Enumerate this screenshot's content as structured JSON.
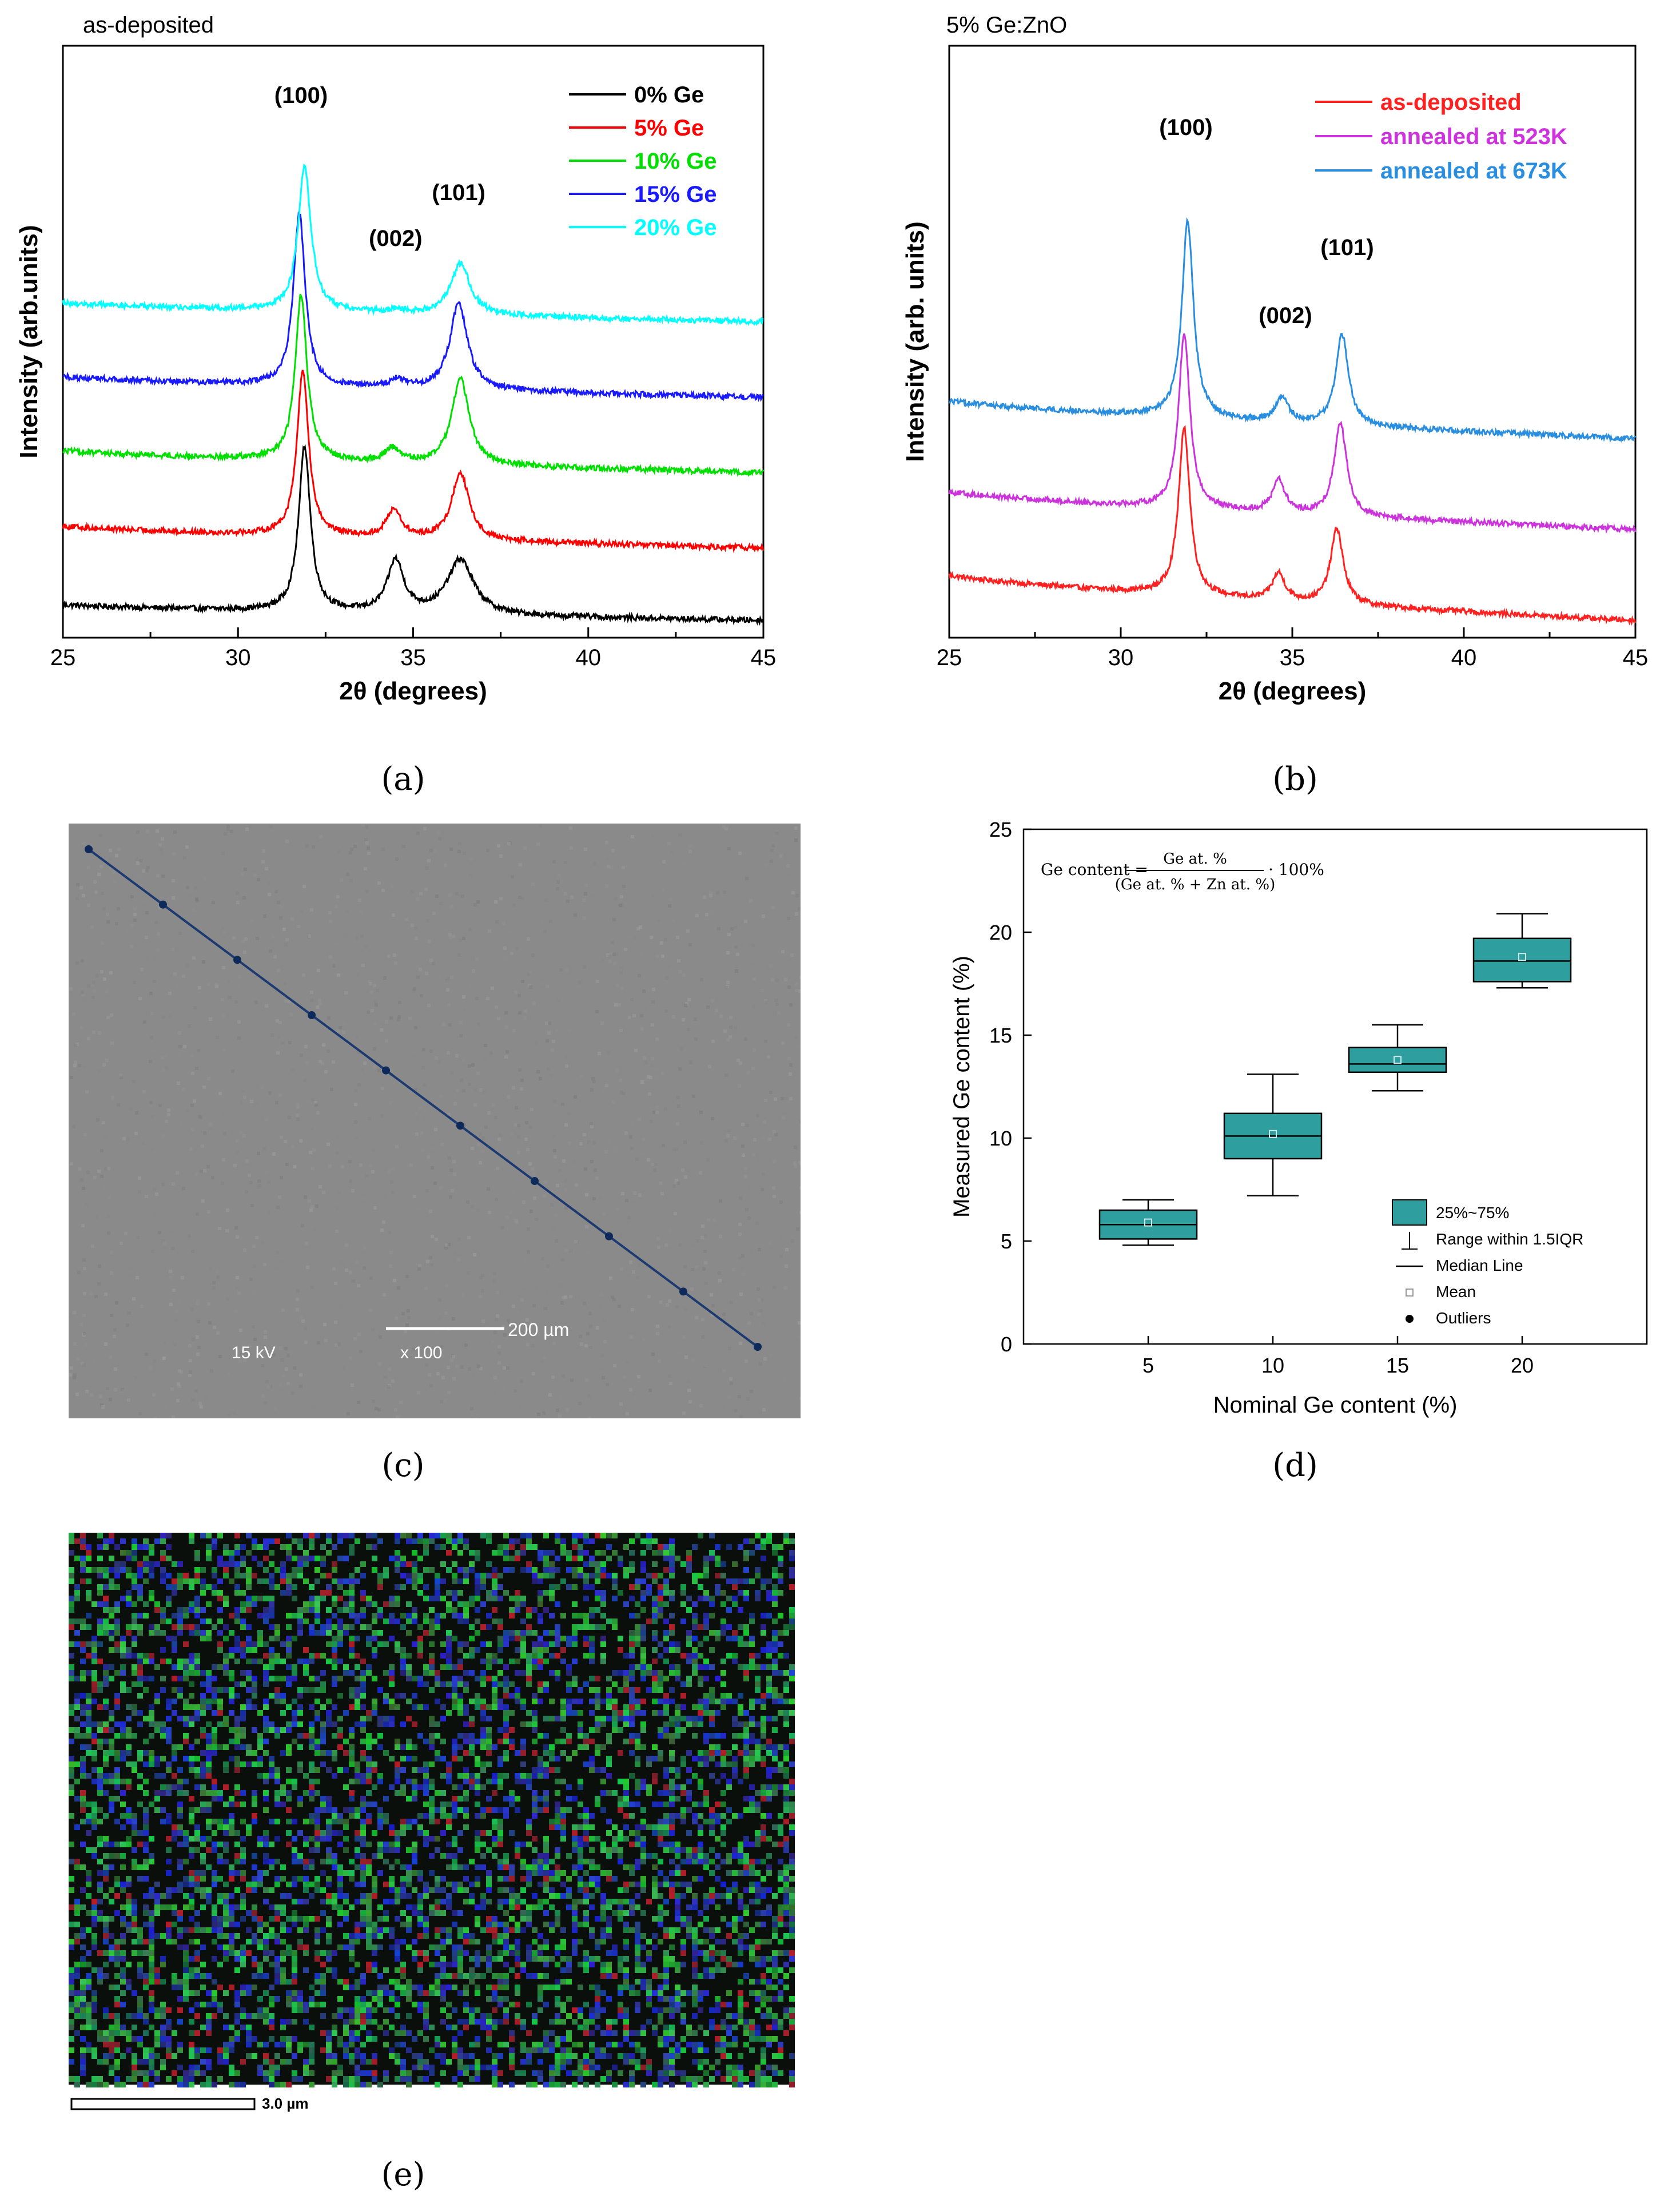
{
  "panels": {
    "a": {
      "label": "(a)",
      "top_title": "as-deposited",
      "chart_data": {
        "type": "line",
        "xlabel": "2θ (degrees)",
        "ylabel": "Intensity (arb.units)",
        "xlim": [
          25,
          45
        ],
        "xticks": [
          "25",
          "30",
          "35",
          "40",
          "45"
        ],
        "legend_position": "top-right",
        "peak_labels": [
          {
            "text": "(100)",
            "x": 31.8
          },
          {
            "text": "(002)",
            "x": 34.5
          },
          {
            "text": "(101)",
            "x": 36.3
          }
        ],
        "series": [
          {
            "name": "0% Ge",
            "color": "#000000",
            "baseline_start": 0.1,
            "baseline_end": 0.0,
            "peaks": [
              {
                "x": 31.9,
                "h": 1.05,
                "w": 0.2
              },
              {
                "x": 34.5,
                "h": 0.33,
                "w": 0.28
              },
              {
                "x": 36.35,
                "h": 0.35,
                "w": 0.45
              }
            ]
          },
          {
            "name": "5% Ge",
            "color": "#ff0000",
            "baseline_start": 0.6,
            "baseline_end": 0.46,
            "peaks": [
              {
                "x": 31.85,
                "h": 1.05,
                "w": 0.2
              },
              {
                "x": 34.45,
                "h": 0.18,
                "w": 0.25
              },
              {
                "x": 36.35,
                "h": 0.43,
                "w": 0.3
              }
            ]
          },
          {
            "name": "10% Ge",
            "color": "#00e000",
            "baseline_start": 1.08,
            "baseline_end": 0.94,
            "peaks": [
              {
                "x": 31.8,
                "h": 1.05,
                "w": 0.2
              },
              {
                "x": 34.4,
                "h": 0.09,
                "w": 0.25
              },
              {
                "x": 36.35,
                "h": 0.55,
                "w": 0.3
              }
            ]
          },
          {
            "name": "15% Ge",
            "color": "#1a1aff",
            "baseline_start": 1.55,
            "baseline_end": 1.42,
            "peaks": [
              {
                "x": 31.75,
                "h": 1.1,
                "w": 0.2
              },
              {
                "x": 34.55,
                "h": 0.05,
                "w": 0.25
              },
              {
                "x": 36.3,
                "h": 0.55,
                "w": 0.3
              }
            ]
          },
          {
            "name": "20% Ge",
            "color": "#00ffff",
            "baseline_start": 2.02,
            "baseline_end": 1.9,
            "peaks": [
              {
                "x": 31.9,
                "h": 0.92,
                "w": 0.22
              },
              {
                "x": 34.5,
                "h": 0.02,
                "w": 0.25
              },
              {
                "x": 36.35,
                "h": 0.33,
                "w": 0.33
              }
            ]
          }
        ]
      }
    },
    "b": {
      "label": "(b)",
      "top_title": "5% Ge:ZnO",
      "chart_data": {
        "type": "line",
        "xlabel": "2θ (degrees)",
        "ylabel": "Intensity (arb. units)",
        "xlim": [
          25,
          45
        ],
        "xticks": [
          "25",
          "30",
          "35",
          "40",
          "45"
        ],
        "legend_position": "top-right",
        "peak_labels": [
          {
            "text": "(100)",
            "x": 31.9
          },
          {
            "text": "(002)",
            "x": 34.8
          },
          {
            "text": "(101)",
            "x": 36.6
          }
        ],
        "series": [
          {
            "name": "as-deposited",
            "color": "#ff2020",
            "baseline_start": 0.3,
            "baseline_end": 0.0,
            "peaks": [
              {
                "x": 31.85,
                "h": 1.1,
                "w": 0.2
              },
              {
                "x": 34.6,
                "h": 0.18,
                "w": 0.22
              },
              {
                "x": 36.3,
                "h": 0.5,
                "w": 0.22
              }
            ]
          },
          {
            "name": "annealed at 523K",
            "color": "#cc33dd",
            "baseline_start": 0.85,
            "baseline_end": 0.6,
            "peaks": [
              {
                "x": 31.85,
                "h": 1.15,
                "w": 0.2
              },
              {
                "x": 34.6,
                "h": 0.22,
                "w": 0.22
              },
              {
                "x": 36.4,
                "h": 0.62,
                "w": 0.22
              }
            ]
          },
          {
            "name": "annealed at 673K",
            "color": "#2a8ee0",
            "baseline_start": 1.45,
            "baseline_end": 1.2,
            "peaks": [
              {
                "x": 31.95,
                "h": 1.3,
                "w": 0.2
              },
              {
                "x": 34.7,
                "h": 0.16,
                "w": 0.22
              },
              {
                "x": 36.45,
                "h": 0.6,
                "w": 0.22
              }
            ]
          }
        ]
      }
    },
    "c": {
      "label": "(c)",
      "scalebar_text": "200 µm",
      "voltage_text": "15 kV",
      "magnification_text": "x 100",
      "line_color": "#1c3a70",
      "background_color": "#8a8a8a",
      "line_points": 10
    },
    "d": {
      "label": "(d)",
      "formula": {
        "lhs": "Ge content =",
        "numerator": "Ge at. %",
        "denominator": "(Ge at. % + Zn at. %)",
        "suffix": "· 100%"
      },
      "chart_data": {
        "type": "box",
        "xlabel": "Nominal Ge content (%)",
        "ylabel": "Measured Ge content (%)",
        "ylim": [
          0,
          25
        ],
        "yticks": [
          0,
          5,
          10,
          15,
          20,
          25
        ],
        "categories": [
          "5",
          "10",
          "15",
          "20"
        ],
        "box_color": "#2e9e9e",
        "boxes": [
          {
            "category": "5",
            "q1": 5.1,
            "median": 5.8,
            "q3": 6.5,
            "whisker_low": 4.8,
            "whisker_high": 7.0,
            "mean": 5.9
          },
          {
            "category": "10",
            "q1": 9.0,
            "median": 10.1,
            "q3": 11.2,
            "whisker_low": 7.2,
            "whisker_high": 13.1,
            "mean": 10.2
          },
          {
            "category": "15",
            "q1": 13.2,
            "median": 13.6,
            "q3": 14.4,
            "whisker_low": 12.3,
            "whisker_high": 15.5,
            "mean": 13.8
          },
          {
            "category": "20",
            "q1": 17.6,
            "median": 18.6,
            "q3": 19.7,
            "whisker_low": 17.3,
            "whisker_high": 20.9,
            "mean": 18.8
          }
        ],
        "legend": [
          {
            "kind": "box",
            "text": "25%~75%"
          },
          {
            "kind": "whisker",
            "text": "Range within 1.5IQR"
          },
          {
            "kind": "median",
            "text": "Median Line"
          },
          {
            "kind": "mean",
            "text": "Mean"
          },
          {
            "kind": "outlier",
            "text": "Outliers"
          }
        ],
        "legend_position": "bottom-right"
      }
    },
    "e": {
      "label": "(e)",
      "scalebar_text": "3.0 µm"
    }
  }
}
